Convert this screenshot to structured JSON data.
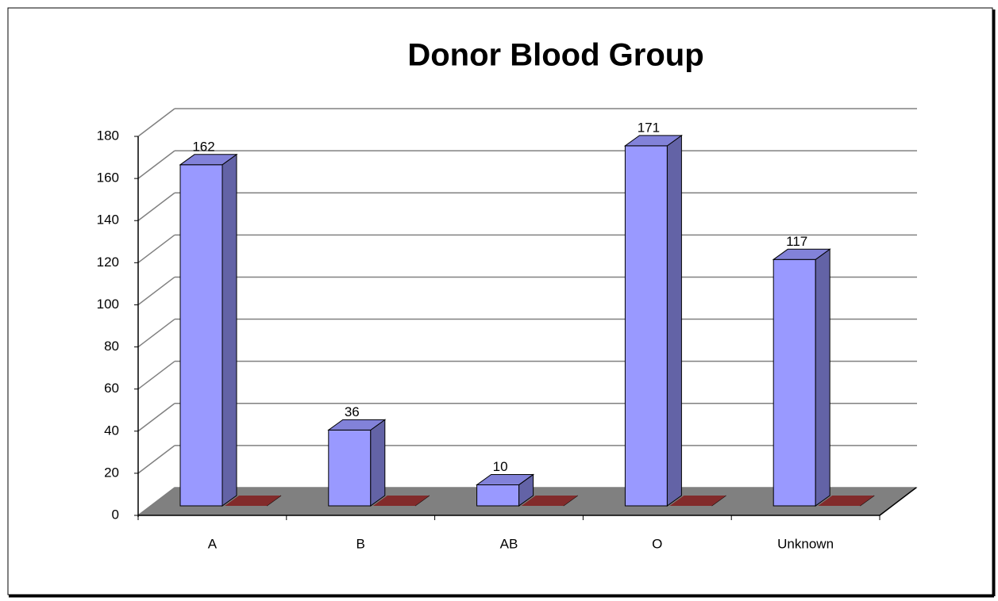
{
  "chart_data": {
    "type": "bar3d",
    "title": "Donor Blood Group",
    "categories": [
      "A",
      "B",
      "AB",
      "O",
      "Unknown"
    ],
    "series": [
      {
        "color": "#9999ff",
        "values": [
          162,
          36,
          10,
          171,
          117
        ]
      },
      {
        "color": "#993333",
        "values": [
          0,
          0,
          0,
          0,
          0
        ]
      }
    ],
    "ylim": [
      0,
      180
    ],
    "yticks": [
      0,
      20,
      40,
      60,
      80,
      100,
      120,
      140,
      160,
      180
    ],
    "grid": true,
    "data_labels": [
      true,
      false
    ]
  }
}
